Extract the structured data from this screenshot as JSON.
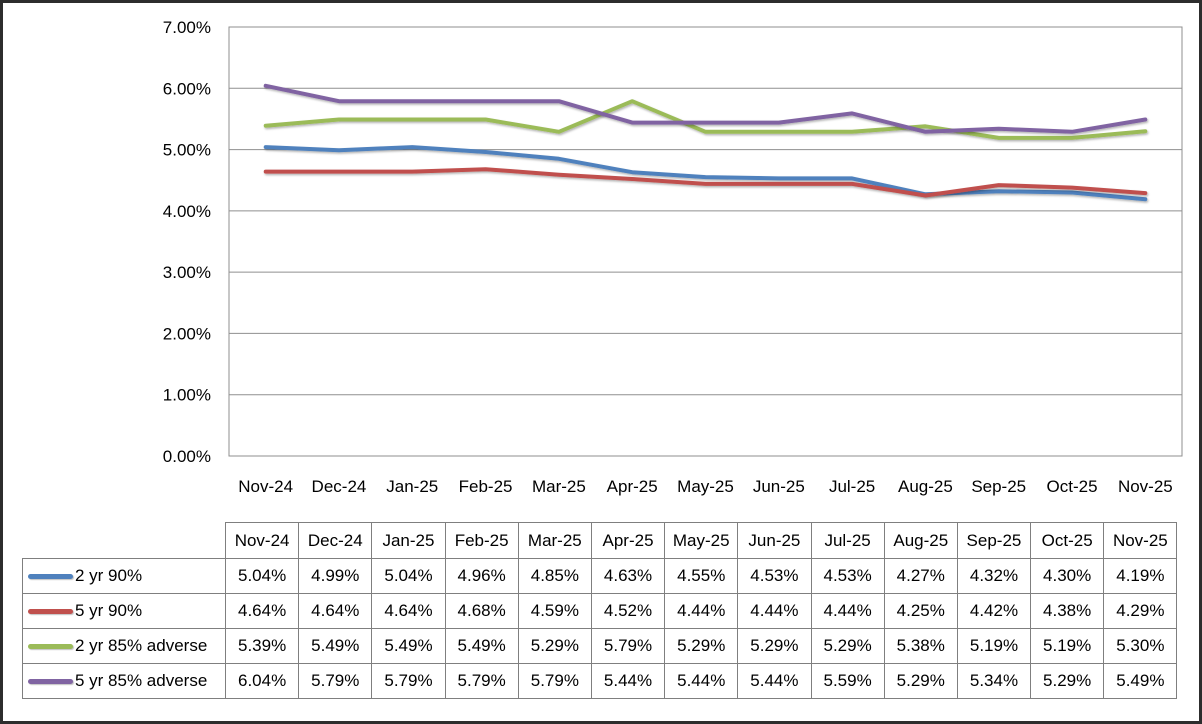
{
  "chart_data": {
    "type": "line",
    "title": "",
    "xlabel": "",
    "ylabel": "",
    "categories": [
      "Nov-24",
      "Dec-24",
      "Jan-25",
      "Feb-25",
      "Mar-25",
      "Apr-25",
      "May-25",
      "Jun-25",
      "Jul-25",
      "Aug-25",
      "Sep-25",
      "Oct-25",
      "Nov-25"
    ],
    "series": [
      {
        "name": "2 yr 90%",
        "color": "#4F81BD",
        "values": [
          5.04,
          4.99,
          5.04,
          4.96,
          4.85,
          4.63,
          4.55,
          4.53,
          4.53,
          4.27,
          4.32,
          4.3,
          4.19
        ]
      },
      {
        "name": "5 yr 90%",
        "color": "#C0504D",
        "values": [
          4.64,
          4.64,
          4.64,
          4.68,
          4.59,
          4.52,
          4.44,
          4.44,
          4.44,
          4.25,
          4.42,
          4.38,
          4.29
        ]
      },
      {
        "name": "2 yr 85% adverse",
        "color": "#9BBB59",
        "values": [
          5.39,
          5.49,
          5.49,
          5.49,
          5.29,
          5.79,
          5.29,
          5.29,
          5.29,
          5.38,
          5.19,
          5.19,
          5.3
        ]
      },
      {
        "name": "5 yr 85% adverse",
        "color": "#8064A2",
        "values": [
          6.04,
          5.79,
          5.79,
          5.79,
          5.79,
          5.44,
          5.44,
          5.44,
          5.59,
          5.29,
          5.34,
          5.29,
          5.49
        ]
      }
    ],
    "y_axis": {
      "min": 0,
      "max": 7,
      "step": 1,
      "unit": "%",
      "tick_labels": [
        "0.00%",
        "1.00%",
        "2.00%",
        "3.00%",
        "4.00%",
        "5.00%",
        "6.00%",
        "7.00%"
      ]
    },
    "grid": true,
    "legend_position": "table-left"
  },
  "table": {
    "header": [
      "Nov-24",
      "Dec-24",
      "Jan-25",
      "Feb-25",
      "Mar-25",
      "Apr-25",
      "May-25",
      "Jun-25",
      "Jul-25",
      "Aug-25",
      "Sep-25",
      "Oct-25",
      "Nov-25"
    ],
    "rows": [
      {
        "label": "2 yr 90%",
        "swatch_color": "#4F81BD",
        "cells": [
          "5.04%",
          "4.99%",
          "5.04%",
          "4.96%",
          "4.85%",
          "4.63%",
          "4.55%",
          "4.53%",
          "4.53%",
          "4.27%",
          "4.32%",
          "4.30%",
          "4.19%"
        ]
      },
      {
        "label": "5 yr 90%",
        "swatch_color": "#C0504D",
        "cells": [
          "4.64%",
          "4.64%",
          "4.64%",
          "4.68%",
          "4.59%",
          "4.52%",
          "4.44%",
          "4.44%",
          "4.44%",
          "4.25%",
          "4.42%",
          "4.38%",
          "4.29%"
        ]
      },
      {
        "label": "2 yr 85% adverse",
        "swatch_color": "#9BBB59",
        "cells": [
          "5.39%",
          "5.49%",
          "5.49%",
          "5.49%",
          "5.29%",
          "5.79%",
          "5.29%",
          "5.29%",
          "5.29%",
          "5.38%",
          "5.19%",
          "5.19%",
          "5.30%"
        ]
      },
      {
        "label": "5 yr 85% adverse",
        "swatch_color": "#8064A2",
        "cells": [
          "6.04%",
          "5.79%",
          "5.79%",
          "5.79%",
          "5.79%",
          "5.44%",
          "5.44%",
          "5.44%",
          "5.59%",
          "5.29%",
          "5.34%",
          "5.29%",
          "5.49%"
        ]
      }
    ]
  },
  "colors": {
    "gridline": "#8f8f8f",
    "plot_border": "#8f8f8f",
    "table_border": "#7f7f7f",
    "frame_border": "#2d2d2d",
    "text": "#000000",
    "background": "#ffffff"
  }
}
